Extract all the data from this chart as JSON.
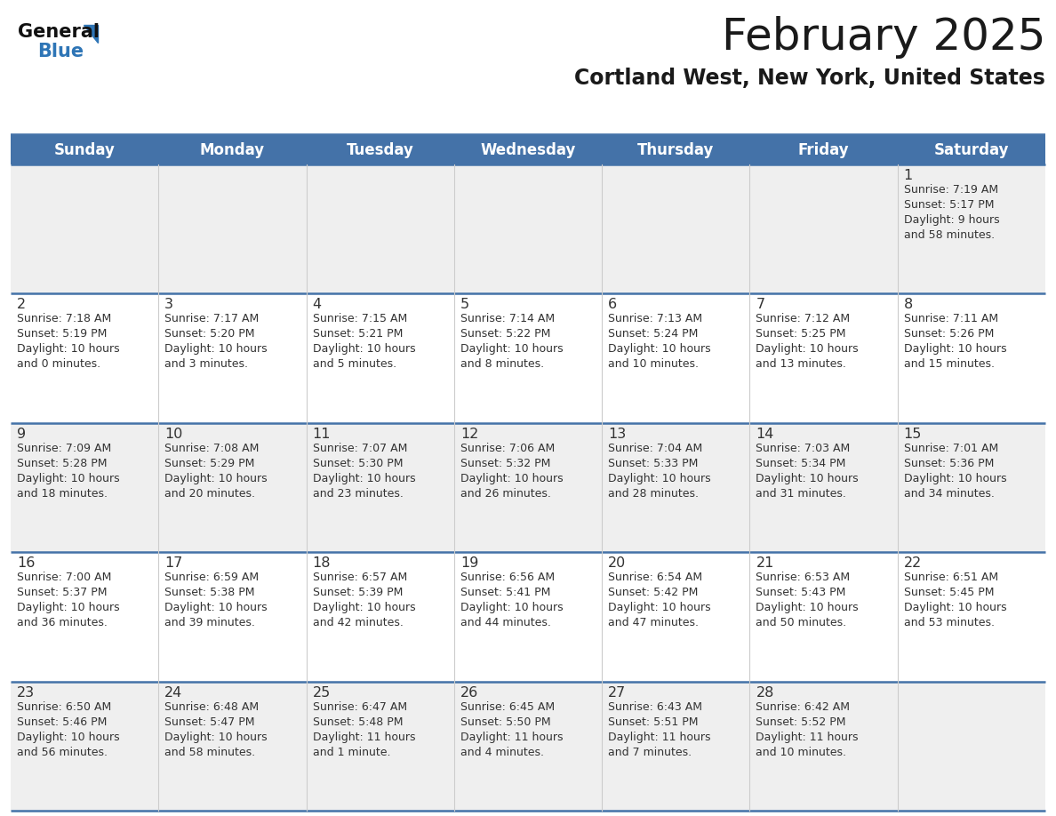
{
  "title": "February 2025",
  "subtitle": "Cortland West, New York, United States",
  "header_bg": "#4472a8",
  "header_text_color": "#ffffff",
  "day_names": [
    "Sunday",
    "Monday",
    "Tuesday",
    "Wednesday",
    "Thursday",
    "Friday",
    "Saturday"
  ],
  "row_bg_even": "#efefef",
  "row_bg_odd": "#ffffff",
  "cell_text_color": "#333333",
  "day_num_color": "#333333",
  "grid_line_color": "#4472a8",
  "title_color": "#1a1a1a",
  "subtitle_color": "#1a1a1a",
  "logo_general_color": "#111111",
  "logo_blue_color": "#2e75b6",
  "weeks": [
    [
      null,
      null,
      null,
      null,
      null,
      null,
      {
        "day": 1,
        "sunrise": "7:19 AM",
        "sunset": "5:17 PM",
        "daylight": "9 hours\nand 58 minutes."
      }
    ],
    [
      {
        "day": 2,
        "sunrise": "7:18 AM",
        "sunset": "5:19 PM",
        "daylight": "10 hours\nand 0 minutes."
      },
      {
        "day": 3,
        "sunrise": "7:17 AM",
        "sunset": "5:20 PM",
        "daylight": "10 hours\nand 3 minutes."
      },
      {
        "day": 4,
        "sunrise": "7:15 AM",
        "sunset": "5:21 PM",
        "daylight": "10 hours\nand 5 minutes."
      },
      {
        "day": 5,
        "sunrise": "7:14 AM",
        "sunset": "5:22 PM",
        "daylight": "10 hours\nand 8 minutes."
      },
      {
        "day": 6,
        "sunrise": "7:13 AM",
        "sunset": "5:24 PM",
        "daylight": "10 hours\nand 10 minutes."
      },
      {
        "day": 7,
        "sunrise": "7:12 AM",
        "sunset": "5:25 PM",
        "daylight": "10 hours\nand 13 minutes."
      },
      {
        "day": 8,
        "sunrise": "7:11 AM",
        "sunset": "5:26 PM",
        "daylight": "10 hours\nand 15 minutes."
      }
    ],
    [
      {
        "day": 9,
        "sunrise": "7:09 AM",
        "sunset": "5:28 PM",
        "daylight": "10 hours\nand 18 minutes."
      },
      {
        "day": 10,
        "sunrise": "7:08 AM",
        "sunset": "5:29 PM",
        "daylight": "10 hours\nand 20 minutes."
      },
      {
        "day": 11,
        "sunrise": "7:07 AM",
        "sunset": "5:30 PM",
        "daylight": "10 hours\nand 23 minutes."
      },
      {
        "day": 12,
        "sunrise": "7:06 AM",
        "sunset": "5:32 PM",
        "daylight": "10 hours\nand 26 minutes."
      },
      {
        "day": 13,
        "sunrise": "7:04 AM",
        "sunset": "5:33 PM",
        "daylight": "10 hours\nand 28 minutes."
      },
      {
        "day": 14,
        "sunrise": "7:03 AM",
        "sunset": "5:34 PM",
        "daylight": "10 hours\nand 31 minutes."
      },
      {
        "day": 15,
        "sunrise": "7:01 AM",
        "sunset": "5:36 PM",
        "daylight": "10 hours\nand 34 minutes."
      }
    ],
    [
      {
        "day": 16,
        "sunrise": "7:00 AM",
        "sunset": "5:37 PM",
        "daylight": "10 hours\nand 36 minutes."
      },
      {
        "day": 17,
        "sunrise": "6:59 AM",
        "sunset": "5:38 PM",
        "daylight": "10 hours\nand 39 minutes."
      },
      {
        "day": 18,
        "sunrise": "6:57 AM",
        "sunset": "5:39 PM",
        "daylight": "10 hours\nand 42 minutes."
      },
      {
        "day": 19,
        "sunrise": "6:56 AM",
        "sunset": "5:41 PM",
        "daylight": "10 hours\nand 44 minutes."
      },
      {
        "day": 20,
        "sunrise": "6:54 AM",
        "sunset": "5:42 PM",
        "daylight": "10 hours\nand 47 minutes."
      },
      {
        "day": 21,
        "sunrise": "6:53 AM",
        "sunset": "5:43 PM",
        "daylight": "10 hours\nand 50 minutes."
      },
      {
        "day": 22,
        "sunrise": "6:51 AM",
        "sunset": "5:45 PM",
        "daylight": "10 hours\nand 53 minutes."
      }
    ],
    [
      {
        "day": 23,
        "sunrise": "6:50 AM",
        "sunset": "5:46 PM",
        "daylight": "10 hours\nand 56 minutes."
      },
      {
        "day": 24,
        "sunrise": "6:48 AM",
        "sunset": "5:47 PM",
        "daylight": "10 hours\nand 58 minutes."
      },
      {
        "day": 25,
        "sunrise": "6:47 AM",
        "sunset": "5:48 PM",
        "daylight": "11 hours\nand 1 minute."
      },
      {
        "day": 26,
        "sunrise": "6:45 AM",
        "sunset": "5:50 PM",
        "daylight": "11 hours\nand 4 minutes."
      },
      {
        "day": 27,
        "sunrise": "6:43 AM",
        "sunset": "5:51 PM",
        "daylight": "11 hours\nand 7 minutes."
      },
      {
        "day": 28,
        "sunrise": "6:42 AM",
        "sunset": "5:52 PM",
        "daylight": "11 hours\nand 10 minutes."
      },
      null
    ]
  ]
}
